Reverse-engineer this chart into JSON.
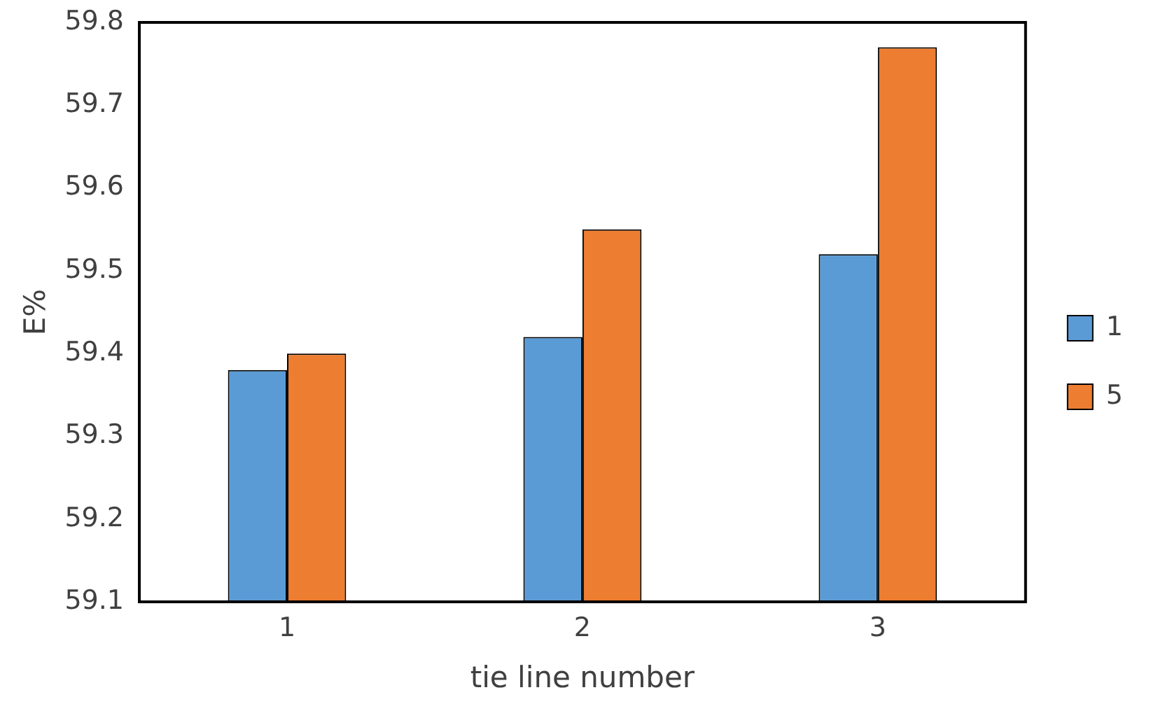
{
  "chart_data": {
    "type": "bar",
    "xlabel": "tie line number",
    "ylabel": "E%",
    "categories": [
      "1",
      "2",
      "3"
    ],
    "series": [
      {
        "name": "1",
        "color": "#5b9bd5",
        "values": [
          59.38,
          59.42,
          59.52
        ]
      },
      {
        "name": "5",
        "color": "#ed7d31",
        "values": [
          59.4,
          59.55,
          59.77
        ]
      }
    ],
    "ylim": [
      59.1,
      59.8
    ],
    "yticks": [
      59.1,
      59.2,
      59.3,
      59.4,
      59.5,
      59.6,
      59.7,
      59.8
    ],
    "grid": false,
    "legend": "right"
  }
}
